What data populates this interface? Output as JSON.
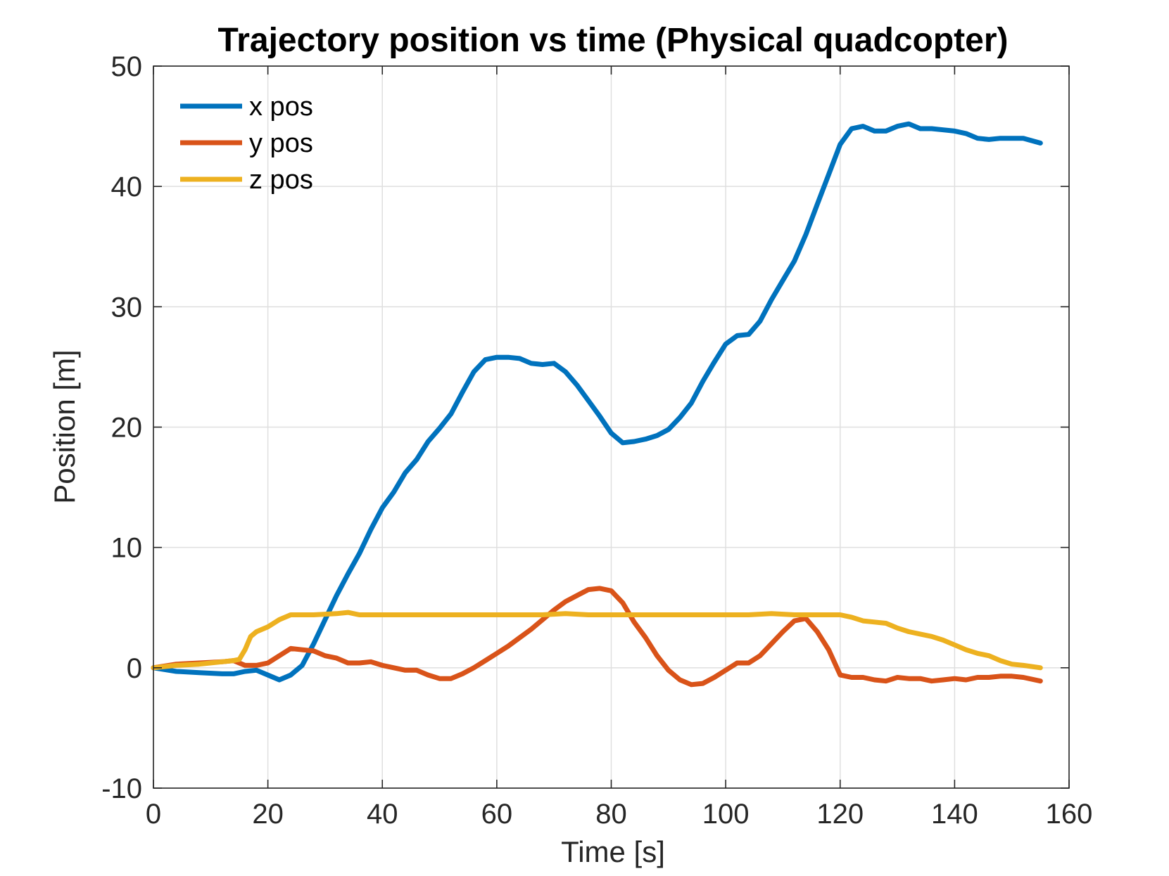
{
  "chart_data": {
    "type": "line",
    "title": "Trajectory position vs time (Physical quadcopter)",
    "xlabel": "Time [s]",
    "ylabel": "Position [m]",
    "xlim": [
      0,
      160
    ],
    "ylim": [
      -10,
      50
    ],
    "xticks": [
      "0",
      "20",
      "40",
      "60",
      "80",
      "100",
      "120",
      "140",
      "160"
    ],
    "yticks": [
      "-10",
      "0",
      "10",
      "20",
      "30",
      "40",
      "50"
    ],
    "grid": true,
    "legend_position": "top-left",
    "series": [
      {
        "name": "x pos",
        "color": "#0072BD",
        "points": [
          [
            0,
            0
          ],
          [
            4,
            -0.3
          ],
          [
            8,
            -0.4
          ],
          [
            12,
            -0.5
          ],
          [
            14,
            -0.5
          ],
          [
            16,
            -0.3
          ],
          [
            18,
            -0.2
          ],
          [
            20,
            -0.6
          ],
          [
            22,
            -1.0
          ],
          [
            24,
            -0.6
          ],
          [
            26,
            0.2
          ],
          [
            28,
            2.0
          ],
          [
            30,
            4.0
          ],
          [
            32,
            6.0
          ],
          [
            34,
            7.8
          ],
          [
            36,
            9.5
          ],
          [
            38,
            11.5
          ],
          [
            40,
            13.3
          ],
          [
            42,
            14.6
          ],
          [
            44,
            16.2
          ],
          [
            46,
            17.3
          ],
          [
            48,
            18.8
          ],
          [
            50,
            19.9
          ],
          [
            52,
            21.1
          ],
          [
            54,
            22.9
          ],
          [
            56,
            24.6
          ],
          [
            58,
            25.6
          ],
          [
            60,
            25.8
          ],
          [
            62,
            25.8
          ],
          [
            64,
            25.7
          ],
          [
            66,
            25.3
          ],
          [
            68,
            25.2
          ],
          [
            70,
            25.3
          ],
          [
            72,
            24.6
          ],
          [
            74,
            23.5
          ],
          [
            76,
            22.2
          ],
          [
            78,
            20.9
          ],
          [
            80,
            19.5
          ],
          [
            82,
            18.7
          ],
          [
            84,
            18.8
          ],
          [
            86,
            19.0
          ],
          [
            88,
            19.3
          ],
          [
            90,
            19.8
          ],
          [
            92,
            20.8
          ],
          [
            94,
            22.0
          ],
          [
            96,
            23.8
          ],
          [
            98,
            25.4
          ],
          [
            100,
            26.9
          ],
          [
            102,
            27.6
          ],
          [
            104,
            27.7
          ],
          [
            106,
            28.8
          ],
          [
            108,
            30.6
          ],
          [
            110,
            32.2
          ],
          [
            112,
            33.8
          ],
          [
            114,
            36.0
          ],
          [
            116,
            38.5
          ],
          [
            118,
            41.0
          ],
          [
            120,
            43.5
          ],
          [
            122,
            44.8
          ],
          [
            124,
            45.0
          ],
          [
            126,
            44.6
          ],
          [
            128,
            44.6
          ],
          [
            130,
            45.0
          ],
          [
            132,
            45.2
          ],
          [
            134,
            44.8
          ],
          [
            136,
            44.8
          ],
          [
            138,
            44.7
          ],
          [
            140,
            44.6
          ],
          [
            142,
            44.4
          ],
          [
            144,
            44.0
          ],
          [
            146,
            43.9
          ],
          [
            148,
            44.0
          ],
          [
            150,
            44.0
          ],
          [
            152,
            44.0
          ],
          [
            155,
            43.6
          ]
        ]
      },
      {
        "name": "y pos",
        "color": "#D95319",
        "points": [
          [
            0,
            0
          ],
          [
            4,
            0.3
          ],
          [
            8,
            0.4
          ],
          [
            12,
            0.5
          ],
          [
            14,
            0.6
          ],
          [
            16,
            0.2
          ],
          [
            18,
            0.2
          ],
          [
            20,
            0.4
          ],
          [
            22,
            1.0
          ],
          [
            24,
            1.6
          ],
          [
            26,
            1.5
          ],
          [
            28,
            1.4
          ],
          [
            30,
            1.0
          ],
          [
            32,
            0.8
          ],
          [
            34,
            0.4
          ],
          [
            36,
            0.4
          ],
          [
            38,
            0.5
          ],
          [
            40,
            0.2
          ],
          [
            42,
            0.0
          ],
          [
            44,
            -0.2
          ],
          [
            46,
            -0.2
          ],
          [
            48,
            -0.6
          ],
          [
            50,
            -0.9
          ],
          [
            52,
            -0.9
          ],
          [
            54,
            -0.5
          ],
          [
            56,
            0.0
          ],
          [
            58,
            0.6
          ],
          [
            60,
            1.2
          ],
          [
            62,
            1.8
          ],
          [
            64,
            2.5
          ],
          [
            66,
            3.2
          ],
          [
            68,
            4.0
          ],
          [
            70,
            4.8
          ],
          [
            72,
            5.5
          ],
          [
            74,
            6.0
          ],
          [
            76,
            6.5
          ],
          [
            78,
            6.6
          ],
          [
            80,
            6.4
          ],
          [
            82,
            5.4
          ],
          [
            84,
            3.8
          ],
          [
            86,
            2.5
          ],
          [
            88,
            1.0
          ],
          [
            90,
            -0.2
          ],
          [
            92,
            -1.0
          ],
          [
            94,
            -1.4
          ],
          [
            96,
            -1.3
          ],
          [
            98,
            -0.8
          ],
          [
            100,
            -0.2
          ],
          [
            102,
            0.4
          ],
          [
            104,
            0.4
          ],
          [
            106,
            1.0
          ],
          [
            108,
            2.0
          ],
          [
            110,
            3.0
          ],
          [
            112,
            3.9
          ],
          [
            114,
            4.1
          ],
          [
            116,
            3.0
          ],
          [
            118,
            1.5
          ],
          [
            120,
            -0.6
          ],
          [
            122,
            -0.8
          ],
          [
            124,
            -0.8
          ],
          [
            126,
            -1.0
          ],
          [
            128,
            -1.1
          ],
          [
            130,
            -0.8
          ],
          [
            132,
            -0.9
          ],
          [
            134,
            -0.9
          ],
          [
            136,
            -1.1
          ],
          [
            138,
            -1.0
          ],
          [
            140,
            -0.9
          ],
          [
            142,
            -1.0
          ],
          [
            144,
            -0.8
          ],
          [
            146,
            -0.8
          ],
          [
            148,
            -0.7
          ],
          [
            150,
            -0.7
          ],
          [
            152,
            -0.8
          ],
          [
            155,
            -1.1
          ]
        ]
      },
      {
        "name": "z pos",
        "color": "#EDB120",
        "points": [
          [
            0,
            0
          ],
          [
            4,
            0.2
          ],
          [
            8,
            0.3
          ],
          [
            12,
            0.5
          ],
          [
            14,
            0.6
          ],
          [
            15,
            0.7
          ],
          [
            16,
            1.5
          ],
          [
            17,
            2.6
          ],
          [
            18,
            3.0
          ],
          [
            20,
            3.4
          ],
          [
            22,
            4.0
          ],
          [
            24,
            4.4
          ],
          [
            28,
            4.4
          ],
          [
            32,
            4.5
          ],
          [
            34,
            4.6
          ],
          [
            36,
            4.4
          ],
          [
            40,
            4.4
          ],
          [
            44,
            4.4
          ],
          [
            48,
            4.4
          ],
          [
            52,
            4.4
          ],
          [
            56,
            4.4
          ],
          [
            60,
            4.4
          ],
          [
            64,
            4.4
          ],
          [
            68,
            4.4
          ],
          [
            72,
            4.5
          ],
          [
            76,
            4.4
          ],
          [
            80,
            4.4
          ],
          [
            84,
            4.4
          ],
          [
            88,
            4.4
          ],
          [
            92,
            4.4
          ],
          [
            96,
            4.4
          ],
          [
            100,
            4.4
          ],
          [
            104,
            4.4
          ],
          [
            108,
            4.5
          ],
          [
            112,
            4.4
          ],
          [
            116,
            4.4
          ],
          [
            120,
            4.4
          ],
          [
            122,
            4.2
          ],
          [
            124,
            3.9
          ],
          [
            126,
            3.8
          ],
          [
            128,
            3.7
          ],
          [
            130,
            3.3
          ],
          [
            132,
            3.0
          ],
          [
            134,
            2.8
          ],
          [
            136,
            2.6
          ],
          [
            138,
            2.3
          ],
          [
            140,
            1.9
          ],
          [
            142,
            1.5
          ],
          [
            144,
            1.2
          ],
          [
            146,
            1.0
          ],
          [
            148,
            0.6
          ],
          [
            150,
            0.3
          ],
          [
            152,
            0.2
          ],
          [
            155,
            0.0
          ]
        ]
      }
    ]
  }
}
